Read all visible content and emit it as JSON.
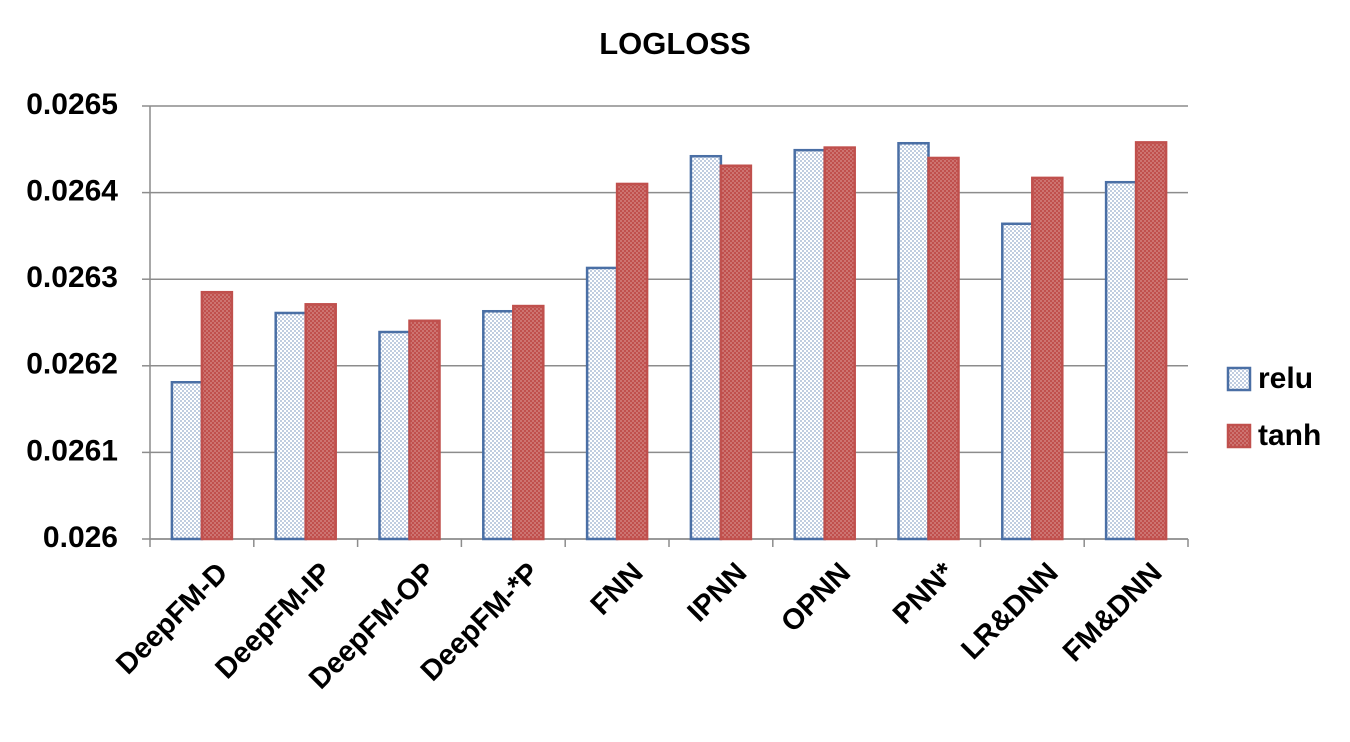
{
  "chart_data": {
    "type": "bar",
    "title": "LOGLOSS",
    "categories": [
      "DeepFM-D",
      "DeepFM-IP",
      "DeepFM-OP",
      "DeepFM-*P",
      "FNN",
      "IPNN",
      "OPNN",
      "PNN*",
      "LR&DNN",
      "FM&DNN"
    ],
    "series": [
      {
        "name": "relu",
        "color": "#4a6fa5",
        "values": [
          0.026181,
          0.026261,
          0.026239,
          0.026263,
          0.026313,
          0.026442,
          0.026449,
          0.026457,
          0.026364,
          0.026412
        ]
      },
      {
        "name": "tanh",
        "color": "#c0504d",
        "values": [
          0.026285,
          0.026271,
          0.026252,
          0.026269,
          0.02641,
          0.026431,
          0.026452,
          0.02644,
          0.026417,
          0.026458
        ]
      }
    ],
    "ylim": [
      0.026,
      0.0265
    ],
    "yticks": [
      0.026,
      0.0261,
      0.0262,
      0.0263,
      0.0264,
      0.0265
    ],
    "grid": true,
    "legend": "right"
  }
}
